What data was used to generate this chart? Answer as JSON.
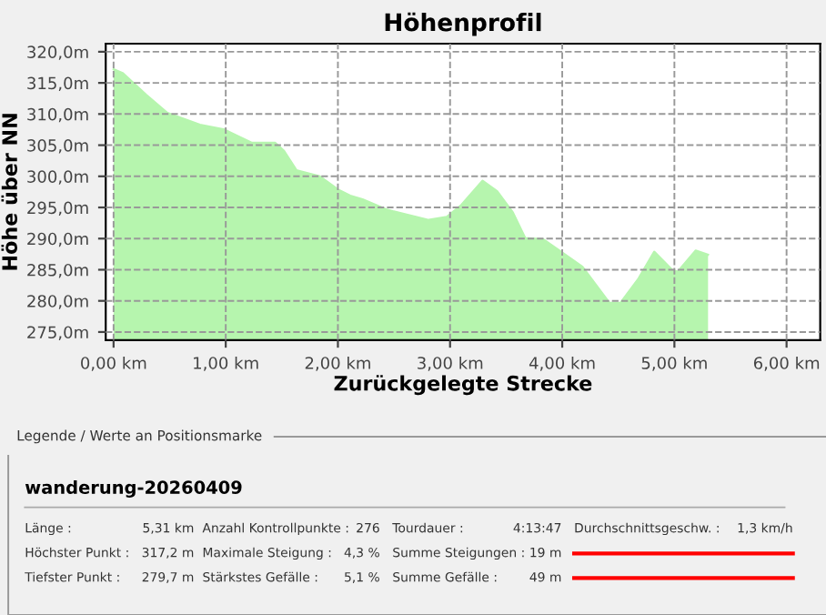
{
  "chart_data": {
    "type": "area",
    "title": "Höhenprofil",
    "xlabel": "Zurückgelegte Strecke",
    "ylabel": "Höhe über NN",
    "x": [
      0,
      0.08,
      0.29,
      0.48,
      0.77,
      0.99,
      1.23,
      1.44,
      1.52,
      1.63,
      1.84,
      2.0,
      2.11,
      2.22,
      2.43,
      2.49,
      2.81,
      2.97,
      3.1,
      3.29,
      3.42,
      3.56,
      3.67,
      3.83,
      3.99,
      4.18,
      4.42,
      4.52,
      4.68,
      4.82,
      4.98,
      5.03,
      5.19,
      5.3
    ],
    "series": [
      {
        "color": "#b6f5ae",
        "values": [
          317.2,
          316.6,
          313.1,
          310.2,
          308.3,
          307.5,
          305.4,
          305.4,
          304.1,
          301.0,
          300.0,
          297.9,
          296.9,
          296.3,
          294.7,
          294.4,
          293.0,
          293.5,
          295.4,
          299.3,
          297.6,
          294.2,
          290.1,
          289.9,
          287.9,
          285.5,
          279.7,
          279.7,
          283.6,
          287.9,
          285.0,
          284.7,
          288.1,
          287.4
        ]
      }
    ],
    "xlim": [
      -0.07,
      6.3
    ],
    "ylim": [
      273.7,
      321.3
    ],
    "xticks": [
      {
        "value": 0,
        "label": "0,00 km"
      },
      {
        "value": 1,
        "label": "1,00 km"
      },
      {
        "value": 2,
        "label": "2,00 km"
      },
      {
        "value": 3,
        "label": "3,00 km"
      },
      {
        "value": 4,
        "label": "4,00 km"
      },
      {
        "value": 5,
        "label": "5,00 km"
      },
      {
        "value": 6,
        "label": "6,00 km"
      }
    ],
    "yticks": [
      {
        "value": 275,
        "label": "275,0m"
      },
      {
        "value": 280,
        "label": "280,0m"
      },
      {
        "value": 285,
        "label": "285,0m"
      },
      {
        "value": 290,
        "label": "290,0m"
      },
      {
        "value": 295,
        "label": "295,0m"
      },
      {
        "value": 300,
        "label": "300,0m"
      },
      {
        "value": 305,
        "label": "305,0m"
      },
      {
        "value": 310,
        "label": "310,0m"
      },
      {
        "value": 315,
        "label": "315,0m"
      },
      {
        "value": 320,
        "label": "320,0m"
      }
    ],
    "grid": true,
    "line_style": "dashed",
    "annotations": [
      "Legende / Werte an Positionsmarke",
      "wanderung-20260409",
      "Länge :",
      "Höchster Punkt :",
      "Tiefster Punkt :",
      "5,31 km",
      "317,2 m",
      "279,7 m",
      "Anzahl Kontrollpunkte :",
      "Maximale Steigung :",
      "Stärkstes Gefälle :",
      "276",
      "4,3 %",
      "5,1 %",
      "Tourdauer :",
      "Summe Steigungen :",
      "Summe Gefälle :",
      "4:13:47",
      "19 m",
      "49 m",
      "Durchschnittsgeschw. :",
      "1,3 km/h"
    ]
  }
}
